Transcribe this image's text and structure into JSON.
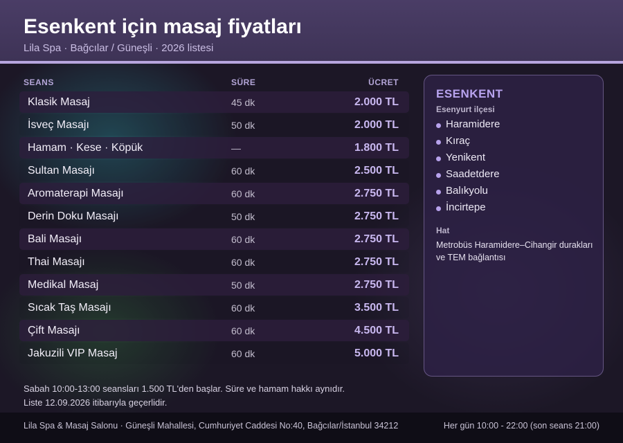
{
  "header": {
    "title": "Esenkent için masaj fiyatları",
    "subtitle": "Lila Spa · Bağcılar / Güneşli · 2026 listesi"
  },
  "table": {
    "columns": {
      "seans": "SEANS",
      "sure": "SÜRE",
      "ucret": "ÜCRET"
    },
    "rows": [
      {
        "name": "Klasik Masaj",
        "duration": "45 dk",
        "price": "2.000 TL"
      },
      {
        "name": "İsveç Masajı",
        "duration": "50 dk",
        "price": "2.000 TL"
      },
      {
        "name": "Hamam · Kese · Köpük",
        "duration": "—",
        "price": "1.800 TL"
      },
      {
        "name": "Sultan Masajı",
        "duration": "60 dk",
        "price": "2.500 TL"
      },
      {
        "name": "Aromaterapi Masajı",
        "duration": "60 dk",
        "price": "2.750 TL"
      },
      {
        "name": "Derin Doku Masajı",
        "duration": "50 dk",
        "price": "2.750 TL"
      },
      {
        "name": "Bali Masajı",
        "duration": "60 dk",
        "price": "2.750 TL"
      },
      {
        "name": "Thai Masajı",
        "duration": "60 dk",
        "price": "2.750 TL"
      },
      {
        "name": "Medikal Masaj",
        "duration": "50 dk",
        "price": "2.750 TL"
      },
      {
        "name": "Sıcak Taş Masajı",
        "duration": "60 dk",
        "price": "3.500 TL"
      },
      {
        "name": "Çift Masajı",
        "duration": "60 dk",
        "price": "4.500 TL"
      },
      {
        "name": "Jakuzili VIP Masaj",
        "duration": "60 dk",
        "price": "5.000 TL"
      }
    ]
  },
  "panel": {
    "title": "ESENKENT",
    "subtitle": "Esenyurt ilçesi",
    "neighborhoods": [
      "Haramidere",
      "Kıraç",
      "Yenikent",
      "Saadetdere",
      "Balıkyolu",
      "İncirtepe"
    ],
    "hat_title": "Hat",
    "hat_text": "Metrobüs Haramidere–Cihangir durakları ve TEM bağlantısı"
  },
  "notes": {
    "line1": "Sabah 10:00-13:00 seansları 1.500 TL'den başlar. Süre ve hamam hakkı aynıdır.",
    "line2": "Liste 12.09.2026 itibarıyla geçerlidir."
  },
  "footer": {
    "address": "Lila Spa & Masaj Salonu · Güneşli Mahallesi, Cumhuriyet Caddesi No:40, Bağcılar/İstanbul 34212",
    "hours": "Her gün 10:00 - 22:00 (son seans 21:00)"
  },
  "colors": {
    "accent": "#b7a5de",
    "header_bg": "#433860",
    "price": "#c9b8f0",
    "page_bg": "#1c1726"
  }
}
